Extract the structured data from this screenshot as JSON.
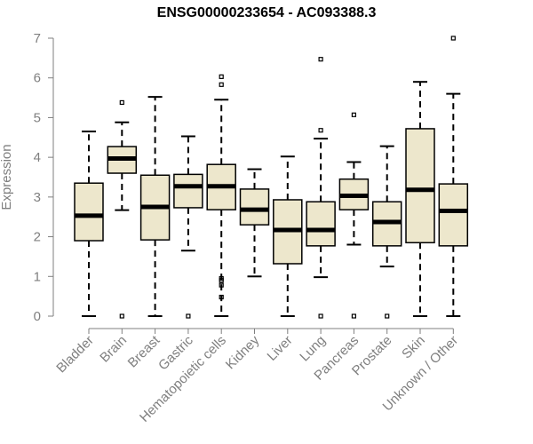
{
  "chart_data": {
    "type": "boxplot",
    "title": "ENSG00000233654 - AC093388.3",
    "xlabel": "",
    "ylabel": "Expression",
    "ylim": [
      0,
      7
    ],
    "yticks": [
      0,
      1,
      2,
      3,
      4,
      5,
      6,
      7
    ],
    "grid": false,
    "colors": {
      "box_fill": "#ede7cc",
      "box_stroke": "#000000",
      "median": "#000000",
      "axis": "#7f7f7f",
      "text": "#7f7f7f"
    },
    "categories": [
      "Bladder",
      "Brain",
      "Breast",
      "Gastric",
      "Hematopoietic cells",
      "Kidney",
      "Liver",
      "Lung",
      "Pancreas",
      "Prostate",
      "Skin",
      "Unknown / Other"
    ],
    "boxes": [
      {
        "q1": 1.9,
        "median": 2.53,
        "q3": 3.35,
        "whisker_low": 0.0,
        "whisker_high": 4.65,
        "outliers": []
      },
      {
        "q1": 3.6,
        "median": 3.97,
        "q3": 4.27,
        "whisker_low": 2.67,
        "whisker_high": 4.88,
        "outliers": [
          0.0,
          5.38
        ]
      },
      {
        "q1": 1.92,
        "median": 2.75,
        "q3": 3.55,
        "whisker_low": 0.0,
        "whisker_high": 5.52,
        "outliers": []
      },
      {
        "q1": 2.73,
        "median": 3.27,
        "q3": 3.57,
        "whisker_low": 1.65,
        "whisker_high": 4.53,
        "outliers": [
          0.0
        ]
      },
      {
        "q1": 2.68,
        "median": 3.27,
        "q3": 3.82,
        "whisker_low": 0.0,
        "whisker_high": 5.45,
        "outliers": [
          0.48,
          0.78,
          0.9,
          0.95,
          5.83,
          6.03
        ]
      },
      {
        "q1": 2.3,
        "median": 2.68,
        "q3": 3.2,
        "whisker_low": 1.0,
        "whisker_high": 3.7,
        "outliers": []
      },
      {
        "q1": 1.32,
        "median": 2.17,
        "q3": 2.93,
        "whisker_low": 0.0,
        "whisker_high": 4.02,
        "outliers": []
      },
      {
        "q1": 1.77,
        "median": 2.17,
        "q3": 2.88,
        "whisker_low": 0.98,
        "whisker_high": 4.47,
        "outliers": [
          0.0,
          4.68,
          6.47
        ]
      },
      {
        "q1": 2.68,
        "median": 3.03,
        "q3": 3.45,
        "whisker_low": 1.8,
        "whisker_high": 3.88,
        "outliers": [
          0.0,
          5.07
        ]
      },
      {
        "q1": 1.77,
        "median": 2.37,
        "q3": 2.88,
        "whisker_low": 1.25,
        "whisker_high": 4.28,
        "outliers": [
          0.0
        ]
      },
      {
        "q1": 1.85,
        "median": 3.18,
        "q3": 4.72,
        "whisker_low": 0.0,
        "whisker_high": 5.9,
        "outliers": []
      },
      {
        "q1": 1.77,
        "median": 2.65,
        "q3": 3.33,
        "whisker_low": 0.0,
        "whisker_high": 5.6,
        "outliers": [
          7.0
        ]
      }
    ]
  }
}
